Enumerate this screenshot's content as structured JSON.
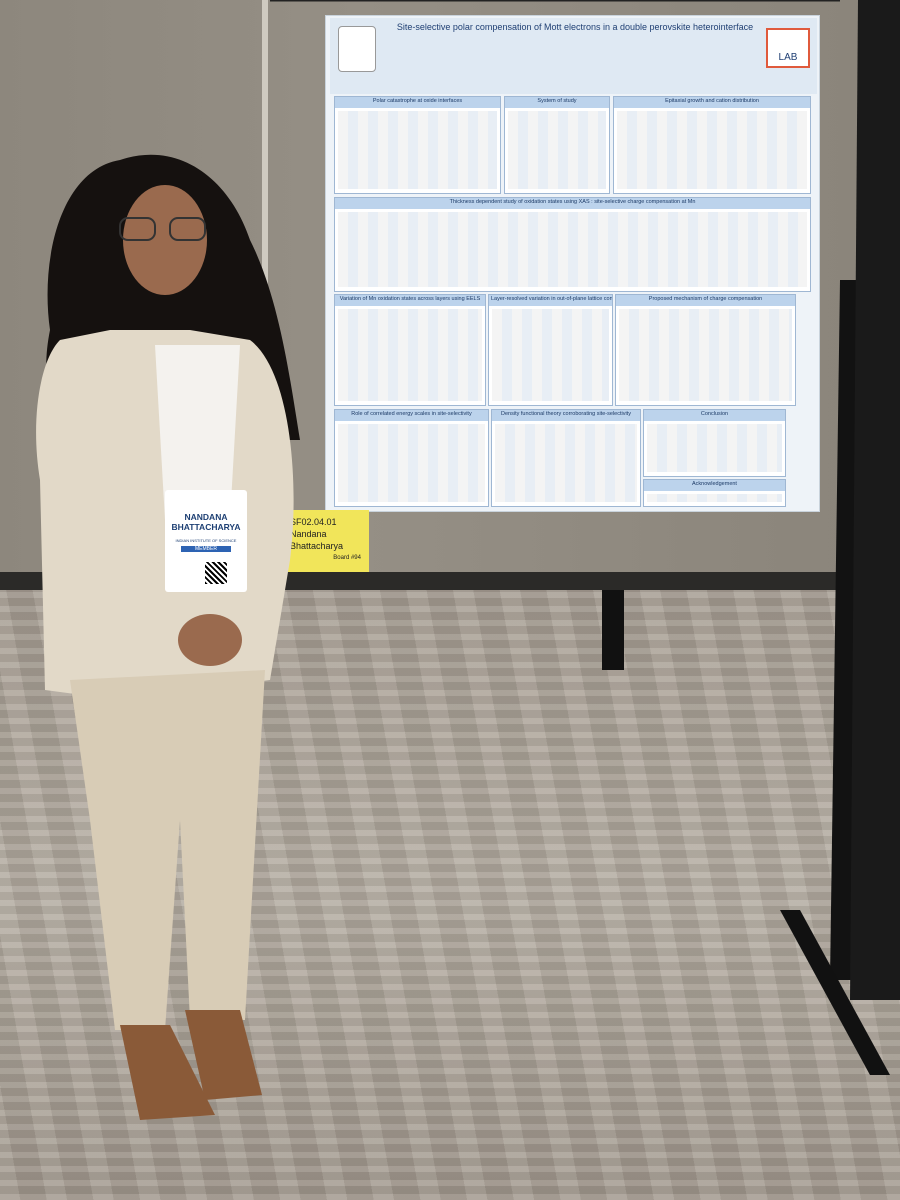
{
  "poster": {
    "title": "Site-selective polar compensation of Mott electrons in a double perovskite heterointerface",
    "lab_logo": "LAB",
    "sections": [
      "Polar catastrophe at oxide interfaces",
      "System of study",
      "Epitaxial growth and cation distribution",
      "Thickness dependent study of oxidation states using XAS : site-selective charge compensation at Mn",
      "Variation of Mn oxidation states across layers using EELS",
      "Layer-resolved variation in out-of-plane lattice constant",
      "Proposed mechanism of charge compensation",
      "Role of correlated energy scales in site-selectivity",
      "Density functional theory corroborating site-selectivity",
      "Conclusion",
      "Acknowledgement"
    ]
  },
  "board_sign": {
    "code": "SF02.04.01",
    "name": "Nandana Bhattacharya",
    "board": "Board #94"
  },
  "badge": {
    "name": "NANDANA BHATTACHARYA",
    "institution": "INDIAN INSTITUTE OF SCIENCE",
    "member": "MEMBER"
  }
}
